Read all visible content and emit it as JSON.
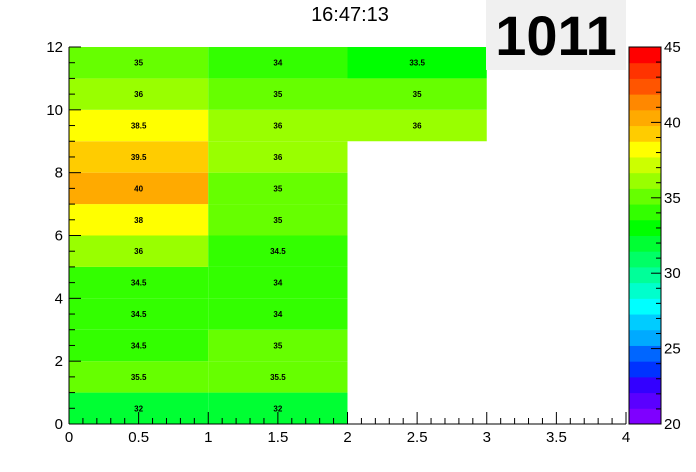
{
  "chart_data": {
    "type": "heatmap",
    "title": "16:47:13",
    "id_label": "1011",
    "xlim": [
      0,
      4
    ],
    "ylim": [
      0,
      12
    ],
    "x_bin_width": 1,
    "y_bin_width": 1,
    "x_ticks": [
      "0",
      "0.5",
      "1",
      "1.5",
      "2",
      "2.5",
      "3",
      "3.5",
      "4"
    ],
    "y_ticks": [
      "0",
      "2",
      "4",
      "6",
      "8",
      "10",
      "12"
    ],
    "z_range": [
      20,
      45
    ],
    "colorbar_ticks": [
      "20",
      "25",
      "30",
      "35",
      "40",
      "45"
    ],
    "palette": [
      "#7f00ff",
      "#5a00ff",
      "#3300ff",
      "#0033ff",
      "#0066ff",
      "#00aaff",
      "#00ccff",
      "#00ffff",
      "#00ffcc",
      "#00ff99",
      "#00ff66",
      "#00ff33",
      "#00ff00",
      "#33ff00",
      "#66ff00",
      "#99ff00",
      "#ccff00",
      "#ffff00",
      "#ffcc00",
      "#ffaa00",
      "#ff8800",
      "#ff5500",
      "#ff3300",
      "#ff0000"
    ],
    "cells": [
      {
        "x": 0,
        "y": 0,
        "value": 32,
        "label": "32"
      },
      {
        "x": 1,
        "y": 0,
        "value": 32,
        "label": "32"
      },
      {
        "x": 0,
        "y": 1,
        "value": 35.5,
        "label": "35.5"
      },
      {
        "x": 1,
        "y": 1,
        "value": 35.5,
        "label": "35.5"
      },
      {
        "x": 0,
        "y": 2,
        "value": 34.5,
        "label": "34.5"
      },
      {
        "x": 1,
        "y": 2,
        "value": 35,
        "label": "35"
      },
      {
        "x": 0,
        "y": 3,
        "value": 34.5,
        "label": "34.5"
      },
      {
        "x": 1,
        "y": 3,
        "value": 34,
        "label": "34"
      },
      {
        "x": 0,
        "y": 4,
        "value": 34.5,
        "label": "34.5"
      },
      {
        "x": 1,
        "y": 4,
        "value": 34,
        "label": "34"
      },
      {
        "x": 0,
        "y": 5,
        "value": 36,
        "label": "36"
      },
      {
        "x": 1,
        "y": 5,
        "value": 34.5,
        "label": "34.5"
      },
      {
        "x": 0,
        "y": 6,
        "value": 38,
        "label": "38"
      },
      {
        "x": 1,
        "y": 6,
        "value": 35,
        "label": "35"
      },
      {
        "x": 0,
        "y": 7,
        "value": 40,
        "label": "40"
      },
      {
        "x": 1,
        "y": 7,
        "value": 35,
        "label": "35"
      },
      {
        "x": 0,
        "y": 8,
        "value": 39.5,
        "label": "39.5"
      },
      {
        "x": 1,
        "y": 8,
        "value": 36,
        "label": "36"
      },
      {
        "x": 0,
        "y": 9,
        "value": 38.5,
        "label": "38.5"
      },
      {
        "x": 1,
        "y": 9,
        "value": 36,
        "label": "36"
      },
      {
        "x": 2,
        "y": 9,
        "value": 36,
        "label": "36"
      },
      {
        "x": 0,
        "y": 10,
        "value": 36,
        "label": "36"
      },
      {
        "x": 1,
        "y": 10,
        "value": 35,
        "label": "35"
      },
      {
        "x": 2,
        "y": 10,
        "value": 35,
        "label": "35"
      },
      {
        "x": 0,
        "y": 11,
        "value": 35,
        "label": "35"
      },
      {
        "x": 1,
        "y": 11,
        "value": 34,
        "label": "34"
      },
      {
        "x": 2,
        "y": 11,
        "value": 33.5,
        "label": "33.5"
      }
    ]
  }
}
